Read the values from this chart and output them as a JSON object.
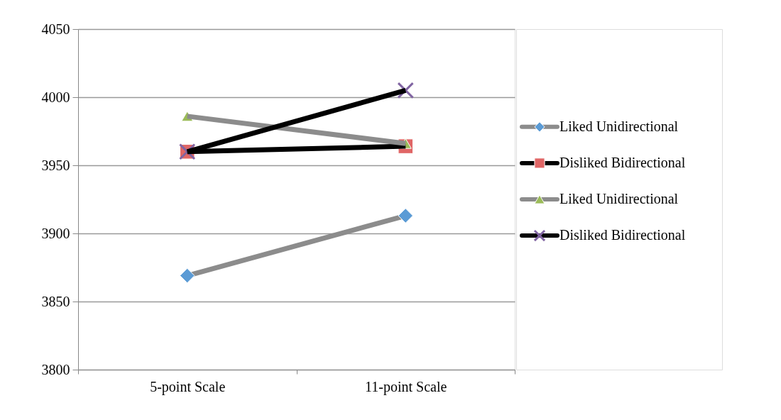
{
  "chart_data": {
    "type": "line",
    "categories": [
      "5-point Scale",
      "11-point Scale"
    ],
    "ylim": [
      3800,
      4050
    ],
    "yticks": [
      3800,
      3850,
      3900,
      3950,
      4000,
      4050
    ],
    "grid": "y",
    "legend": "right",
    "series": [
      {
        "name": "Liked Unidirectional",
        "color": "#8c8c8c",
        "colors": [
          "#5b9bd5",
          "#5b9bd5"
        ],
        "marker": "diamond",
        "values": [
          3869,
          3913
        ]
      },
      {
        "name": "Disliked Bidirectional",
        "color": "#000000",
        "colors": [
          "#e06666",
          "#e06666"
        ],
        "marker": "square",
        "values": [
          3960,
          3964
        ]
      },
      {
        "name": "Liked Unidirectional",
        "color": "#8c8c8c",
        "colors": [
          "#9bbb59",
          "#9bbb59"
        ],
        "marker": "triangle",
        "values": [
          3986,
          3966
        ]
      },
      {
        "name": "Disliked Bidirectional",
        "color": "#000000",
        "colors": [
          "#8064a2",
          "#8064a2"
        ],
        "marker": "cross",
        "values": [
          3960,
          4005
        ]
      }
    ]
  }
}
